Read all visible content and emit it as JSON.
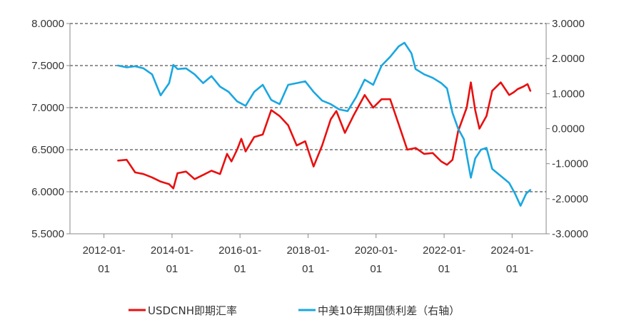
{
  "chart_data": {
    "type": "line",
    "title": "",
    "x_axis": {
      "type": "date",
      "range": [
        "2011-01-01",
        "2025-01-01"
      ],
      "ticks": [
        "2012-01-01",
        "2014-01-01",
        "2016-01-01",
        "2018-01-01",
        "2020-01-01",
        "2022-01-01",
        "2024-01-01"
      ],
      "tick_labels": [
        [
          "2012-01-",
          "01"
        ],
        [
          "2014-01-",
          "01"
        ],
        [
          "2016-01-",
          "01"
        ],
        [
          "2018-01-",
          "01"
        ],
        [
          "2020-01-",
          "01"
        ],
        [
          "2022-01-",
          "01"
        ],
        [
          "2024-01-",
          "01"
        ]
      ]
    },
    "y_left": {
      "range": [
        5.5,
        8.0
      ],
      "ticks": [
        5.5,
        6.0,
        6.5,
        7.0,
        7.5,
        8.0
      ],
      "tick_labels": [
        "5.5000",
        "6.0000",
        "6.5000",
        "7.0000",
        "7.5000",
        "8.0000"
      ]
    },
    "y_right": {
      "range": [
        -3.0,
        3.0
      ],
      "ticks": [
        -3.0,
        -2.0,
        -1.0,
        0.0,
        1.0,
        2.0,
        3.0
      ],
      "tick_labels": [
        "-3.0000",
        "-2.0000",
        "-1.0000",
        "0.0000",
        "1.0000",
        "2.0000",
        "3.0000"
      ]
    },
    "grid": "dashed horizontal",
    "legend": "bottom",
    "series": [
      {
        "name": "USDCNH即期汇率",
        "axis": "left",
        "color": "#e8100f",
        "points": [
          [
            "2012-06-01",
            6.37
          ],
          [
            "2012-09-01",
            6.38
          ],
          [
            "2012-12-01",
            6.23
          ],
          [
            "2013-03-01",
            6.21
          ],
          [
            "2013-06-01",
            6.17
          ],
          [
            "2013-09-01",
            6.12
          ],
          [
            "2013-12-01",
            6.09
          ],
          [
            "2014-01-15",
            6.04
          ],
          [
            "2014-03-01",
            6.22
          ],
          [
            "2014-06-01",
            6.24
          ],
          [
            "2014-09-01",
            6.15
          ],
          [
            "2014-12-01",
            6.2
          ],
          [
            "2015-03-01",
            6.25
          ],
          [
            "2015-06-01",
            6.21
          ],
          [
            "2015-08-15",
            6.45
          ],
          [
            "2015-10-01",
            6.36
          ],
          [
            "2015-12-01",
            6.5
          ],
          [
            "2016-01-15",
            6.63
          ],
          [
            "2016-03-01",
            6.48
          ],
          [
            "2016-06-01",
            6.65
          ],
          [
            "2016-09-01",
            6.68
          ],
          [
            "2016-12-01",
            6.97
          ],
          [
            "2017-03-01",
            6.9
          ],
          [
            "2017-06-01",
            6.79
          ],
          [
            "2017-09-01",
            6.55
          ],
          [
            "2017-12-01",
            6.6
          ],
          [
            "2018-03-01",
            6.3
          ],
          [
            "2018-06-01",
            6.55
          ],
          [
            "2018-09-01",
            6.86
          ],
          [
            "2018-11-01",
            6.96
          ],
          [
            "2019-02-01",
            6.7
          ],
          [
            "2019-05-01",
            6.9
          ],
          [
            "2019-09-01",
            7.15
          ],
          [
            "2019-12-01",
            7.0
          ],
          [
            "2020-03-01",
            7.1
          ],
          [
            "2020-06-01",
            7.1
          ],
          [
            "2020-09-01",
            6.8
          ],
          [
            "2020-12-01",
            6.5
          ],
          [
            "2021-03-01",
            6.52
          ],
          [
            "2021-06-01",
            6.45
          ],
          [
            "2021-09-01",
            6.46
          ],
          [
            "2021-12-01",
            6.36
          ],
          [
            "2022-02-01",
            6.32
          ],
          [
            "2022-04-01",
            6.38
          ],
          [
            "2022-06-01",
            6.72
          ],
          [
            "2022-09-01",
            7.0
          ],
          [
            "2022-10-15",
            7.3
          ],
          [
            "2022-12-01",
            6.97
          ],
          [
            "2023-01-15",
            6.75
          ],
          [
            "2023-04-01",
            6.9
          ],
          [
            "2023-06-01",
            7.2
          ],
          [
            "2023-09-01",
            7.3
          ],
          [
            "2023-12-01",
            7.15
          ],
          [
            "2024-01-15",
            7.18
          ],
          [
            "2024-03-01",
            7.22
          ],
          [
            "2024-05-01",
            7.25
          ],
          [
            "2024-06-15",
            7.28
          ],
          [
            "2024-07-15",
            7.2
          ]
        ]
      },
      {
        "name": "中美10年期国债利差（右轴）",
        "axis": "right",
        "color": "#1aa7e0",
        "points": [
          [
            "2012-06-01",
            1.8
          ],
          [
            "2012-09-01",
            1.75
          ],
          [
            "2012-12-01",
            1.78
          ],
          [
            "2013-03-01",
            1.72
          ],
          [
            "2013-06-01",
            1.55
          ],
          [
            "2013-09-01",
            0.95
          ],
          [
            "2013-12-01",
            1.3
          ],
          [
            "2014-01-15",
            1.82
          ],
          [
            "2014-03-01",
            1.7
          ],
          [
            "2014-06-01",
            1.72
          ],
          [
            "2014-09-01",
            1.55
          ],
          [
            "2014-12-01",
            1.3
          ],
          [
            "2015-03-01",
            1.5
          ],
          [
            "2015-06-01",
            1.2
          ],
          [
            "2015-09-01",
            1.05
          ],
          [
            "2015-12-01",
            0.78
          ],
          [
            "2016-03-01",
            0.65
          ],
          [
            "2016-06-01",
            1.05
          ],
          [
            "2016-09-01",
            1.25
          ],
          [
            "2016-12-01",
            0.82
          ],
          [
            "2017-03-01",
            0.7
          ],
          [
            "2017-06-01",
            1.25
          ],
          [
            "2017-09-01",
            1.3
          ],
          [
            "2017-12-01",
            1.35
          ],
          [
            "2018-03-01",
            1.05
          ],
          [
            "2018-06-01",
            0.8
          ],
          [
            "2018-09-01",
            0.7
          ],
          [
            "2018-12-01",
            0.55
          ],
          [
            "2019-03-01",
            0.5
          ],
          [
            "2019-06-01",
            0.9
          ],
          [
            "2019-09-01",
            1.4
          ],
          [
            "2019-12-01",
            1.25
          ],
          [
            "2020-03-01",
            1.8
          ],
          [
            "2020-06-01",
            2.05
          ],
          [
            "2020-09-01",
            2.35
          ],
          [
            "2020-11-01",
            2.45
          ],
          [
            "2021-01-15",
            2.15
          ],
          [
            "2021-03-01",
            1.7
          ],
          [
            "2021-06-01",
            1.55
          ],
          [
            "2021-09-01",
            1.45
          ],
          [
            "2021-12-01",
            1.3
          ],
          [
            "2022-02-01",
            1.15
          ],
          [
            "2022-04-01",
            0.45
          ],
          [
            "2022-06-01",
            0.0
          ],
          [
            "2022-08-01",
            -0.3
          ],
          [
            "2022-10-15",
            -1.4
          ],
          [
            "2022-12-01",
            -0.85
          ],
          [
            "2023-02-01",
            -0.6
          ],
          [
            "2023-04-01",
            -0.55
          ],
          [
            "2023-06-01",
            -1.15
          ],
          [
            "2023-09-01",
            -1.35
          ],
          [
            "2023-12-01",
            -1.55
          ],
          [
            "2024-02-01",
            -1.85
          ],
          [
            "2024-04-01",
            -2.2
          ],
          [
            "2024-06-01",
            -1.85
          ],
          [
            "2024-07-15",
            -1.75
          ]
        ]
      }
    ]
  }
}
